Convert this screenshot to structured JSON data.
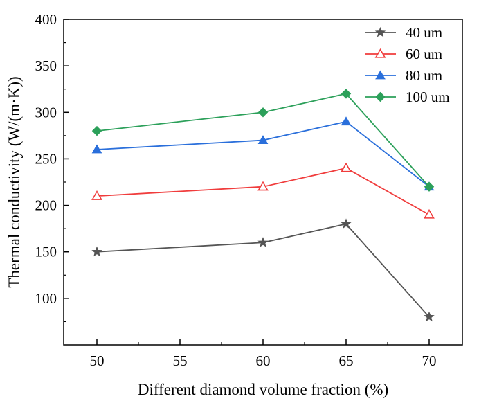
{
  "chart_data": {
    "type": "line",
    "title": "",
    "xlabel": "Different diamond volume fraction (%)",
    "ylabel": "Thermal conductivity (W/(m·K))",
    "x_categories": [
      "50",
      "60",
      "65",
      "70"
    ],
    "x_tick_labels": [
      "50",
      "55",
      "60",
      "65",
      "70"
    ],
    "ylim": [
      50,
      400
    ],
    "y_ticks": [
      100,
      150,
      200,
      250,
      300,
      350,
      400
    ],
    "y_tick_labels": [
      "100",
      "150",
      "200",
      "250",
      "300",
      "350",
      "400"
    ],
    "legend_position": "top-right",
    "series": [
      {
        "name": "40 um",
        "color": "#555555",
        "marker": "star",
        "values": [
          150,
          160,
          180,
          80
        ]
      },
      {
        "name": "60 um",
        "color": "#f03c3c",
        "marker": "triangle-open",
        "values": [
          210,
          220,
          240,
          190
        ]
      },
      {
        "name": "80 um",
        "color": "#2a6fdb",
        "marker": "triangle-filled",
        "values": [
          260,
          270,
          290,
          220
        ]
      },
      {
        "name": "100 um",
        "color": "#2ca05a",
        "marker": "diamond",
        "values": [
          280,
          300,
          320,
          220
        ]
      }
    ]
  }
}
